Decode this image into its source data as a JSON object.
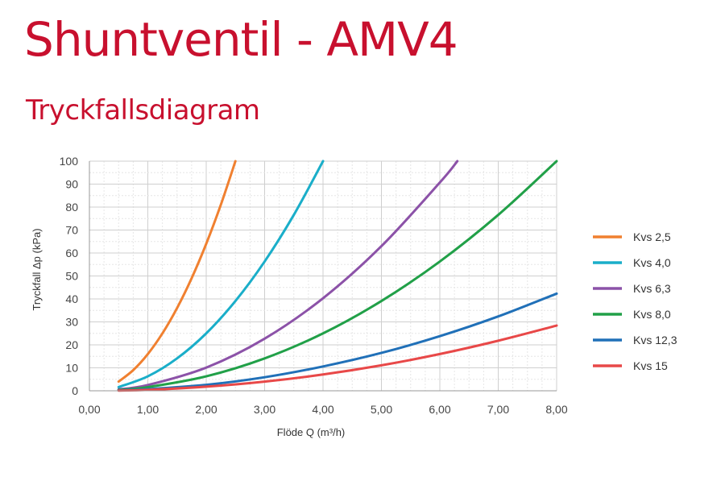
{
  "header": {
    "title": "Shuntventil - AMV4",
    "subtitle": "Tryckfallsdiagram"
  },
  "chart_data": {
    "type": "line",
    "title": "Tryckfallsdiagram",
    "xlabel": "Flöde Q (m³/h)",
    "ylabel": "Tryckfall Δp (kPa)",
    "xlim": [
      0,
      8
    ],
    "ylim": [
      0,
      100
    ],
    "x_ticks": [
      "0,00",
      "1,00",
      "2,00",
      "3,00",
      "4,00",
      "5,00",
      "6,00",
      "7,00",
      "8,00"
    ],
    "y_ticks": [
      "0",
      "10",
      "20",
      "30",
      "40",
      "50",
      "60",
      "70",
      "80",
      "90",
      "100"
    ],
    "grid": true,
    "legend_position": "right",
    "series": [
      {
        "name": "Kvs 2,5",
        "color": "#f08030",
        "kvs": 2.5,
        "x": [
          0.5,
          0.75,
          1.0,
          1.25,
          1.5,
          1.75,
          2.0,
          2.25,
          2.5
        ],
        "y": [
          4,
          9,
          16,
          25,
          36,
          49,
          64,
          81,
          100
        ]
      },
      {
        "name": "Kvs 4,0",
        "color": "#1aaec9",
        "kvs": 4.0,
        "x": [
          0.5,
          1.0,
          1.5,
          2.0,
          2.5,
          3.0,
          3.5,
          4.0
        ],
        "y": [
          1.6,
          6.3,
          14.1,
          25,
          39.1,
          56.3,
          76.6,
          100
        ]
      },
      {
        "name": "Kvs 6,3",
        "color": "#8c52a8",
        "kvs": 6.3,
        "x": [
          0.5,
          1.0,
          2.0,
          3.0,
          4.0,
          5.0,
          6.0,
          6.3
        ],
        "y": [
          0.6,
          2.5,
          10.1,
          22.7,
          40.3,
          63,
          90.7,
          100
        ]
      },
      {
        "name": "Kvs 8,0",
        "color": "#21a048",
        "kvs": 8.0,
        "x": [
          0.5,
          1.0,
          2.0,
          3.0,
          4.0,
          5.0,
          6.0,
          7.0,
          8.0
        ],
        "y": [
          0.4,
          1.6,
          6.3,
          14.1,
          25,
          39.1,
          56.3,
          76.6,
          100
        ]
      },
      {
        "name": "Kvs 12,3",
        "color": "#2070b8",
        "kvs": 12.3,
        "x": [
          0.5,
          1.0,
          2.0,
          3.0,
          4.0,
          5.0,
          6.0,
          7.0,
          8.0
        ],
        "y": [
          0.2,
          0.7,
          2.6,
          5.9,
          10.6,
          16.5,
          23.8,
          32.4,
          42.3
        ]
      },
      {
        "name": "Kvs 15",
        "color": "#e84848",
        "kvs": 15,
        "x": [
          0.5,
          1.0,
          2.0,
          3.0,
          4.0,
          5.0,
          6.0,
          7.0,
          8.0
        ],
        "y": [
          0.1,
          0.4,
          1.8,
          4,
          7.1,
          11.1,
          16,
          21.8,
          28.4
        ]
      }
    ]
  }
}
